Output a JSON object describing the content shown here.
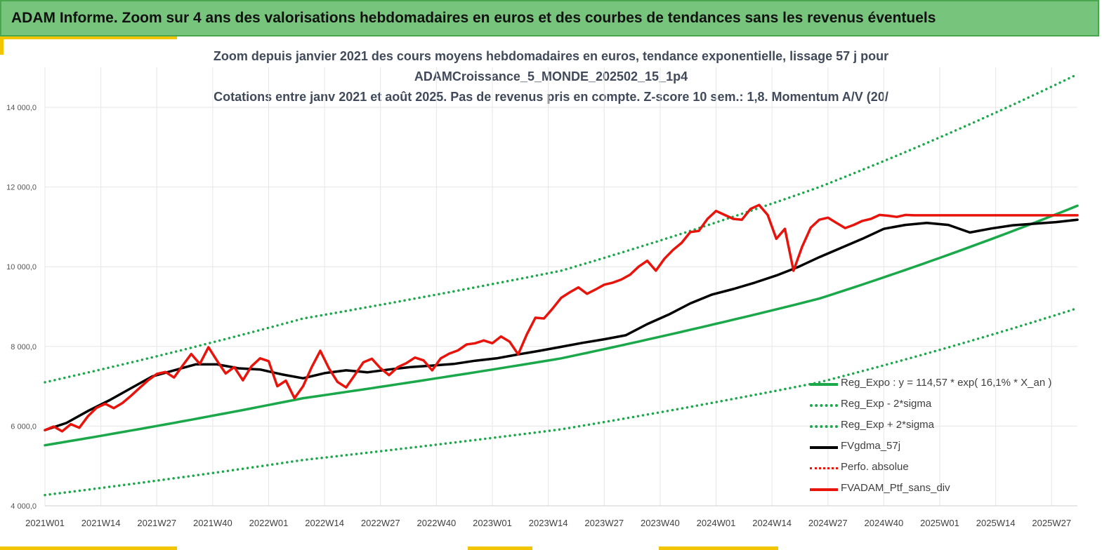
{
  "banner": {
    "title": "ADAM Informe. Zoom sur 4 ans des valorisations hebdomadaires en euros et des courbes de tendances sans les revenus éventuels"
  },
  "chart_titles": {
    "line1": "Zoom depuis janvier 2021 des cours moyens hebdomadaires  en euros, tendance exponentielle, lissage 57 j pour",
    "line2": "ADAMCroissance_5_MONDE_202502_15_1p4",
    "line3": "Cotations entre janv 2021 et août 2025. Pas de revenus pris en compte. Z-score 10 sem.: 1,8. Momentum A/V (20/"
  },
  "colors": {
    "banner_bg": "#77c47c",
    "accent": "#f2c500",
    "green": "#1aa84a",
    "black": "#000000",
    "red": "#e8140c",
    "grid": "#e6e6e6"
  },
  "chart_data": {
    "type": "line",
    "y_ticks": [
      {
        "value": 4000,
        "label": "4 000,0"
      },
      {
        "value": 6000,
        "label": "6 000,0"
      },
      {
        "value": 8000,
        "label": "8 000,0"
      },
      {
        "value": 10000,
        "label": "10 000,0"
      },
      {
        "value": 12000,
        "label": "12 000,0"
      },
      {
        "value": 14000,
        "label": "14 000,0"
      }
    ],
    "ylim": [
      4000,
      15000
    ],
    "x_tick_labels": [
      "2021W01",
      "2021W14",
      "2021W27",
      "2021W40",
      "2022W01",
      "2022W14",
      "2022W27",
      "2022W40",
      "2023W01",
      "2023W14",
      "2023W27",
      "2023W40",
      "2024W01",
      "2024W14",
      "2024W27",
      "2024W40",
      "2025W01",
      "2025W14",
      "2025W27"
    ],
    "x_tick_step_weeks": 13,
    "x_range_weeks": [
      0,
      240
    ],
    "grid": true,
    "legend_position": "bottom-right",
    "series": [
      {
        "name": "Reg_Expo : y = 114,57 * exp( 16,1% *  X_an )",
        "style": "solid",
        "color": "#1aa84a",
        "x": [
          0,
          60,
          120,
          180,
          240
        ],
        "values": [
          5520,
          6700,
          7700,
          9200,
          11530
        ]
      },
      {
        "name": "Reg_Exp - 2*sigma",
        "style": "dotted",
        "color": "#1aa84a",
        "x": [
          0,
          60,
          120,
          180,
          240
        ],
        "values": [
          4270,
          5150,
          5920,
          7100,
          8960
        ]
      },
      {
        "name": "Reg_Exp + 2*sigma",
        "style": "dotted",
        "color": "#1aa84a",
        "x": [
          0,
          60,
          120,
          180,
          240
        ],
        "values": [
          7100,
          8700,
          9900,
          12000,
          14830
        ]
      },
      {
        "name": "FVgdma_57j",
        "style": "solid",
        "color": "#000000",
        "x": [
          0,
          5,
          10,
          15,
          20,
          25,
          30,
          35,
          40,
          45,
          50,
          55,
          60,
          65,
          70,
          75,
          80,
          85,
          90,
          95,
          100,
          105,
          110,
          115,
          120,
          125,
          130,
          135,
          140,
          145,
          150,
          155,
          160,
          165,
          170,
          175,
          180,
          185,
          190,
          195,
          200,
          205,
          210,
          215,
          220,
          225,
          230,
          235,
          240
        ],
        "values": [
          5900,
          6080,
          6380,
          6650,
          6950,
          7250,
          7400,
          7550,
          7550,
          7450,
          7420,
          7300,
          7200,
          7330,
          7400,
          7350,
          7420,
          7480,
          7520,
          7560,
          7640,
          7700,
          7800,
          7890,
          7990,
          8090,
          8180,
          8280,
          8560,
          8800,
          9080,
          9300,
          9440,
          9600,
          9780,
          9990,
          10240,
          10470,
          10700,
          10950,
          11050,
          11100,
          11050,
          10860,
          10960,
          11040,
          11080,
          11120,
          11180
        ]
      },
      {
        "name": "Perfo. absolue",
        "style": "dotted",
        "color": "#e8140c",
        "x": [],
        "values": []
      },
      {
        "name": "FVADAM_Ptf_sans_div",
        "style": "solid",
        "color": "#e8140c",
        "x": [
          0,
          2,
          4,
          6,
          8,
          10,
          12,
          14,
          16,
          18,
          20,
          22,
          24,
          26,
          28,
          30,
          32,
          34,
          36,
          38,
          40,
          42,
          44,
          46,
          48,
          50,
          52,
          54,
          56,
          58,
          60,
          62,
          64,
          66,
          68,
          70,
          72,
          74,
          76,
          78,
          80,
          82,
          84,
          86,
          88,
          90,
          92,
          94,
          96,
          98,
          100,
          102,
          104,
          106,
          108,
          110,
          112,
          114,
          116,
          118,
          120,
          122,
          124,
          126,
          128,
          130,
          132,
          134,
          136,
          138,
          140,
          142,
          144,
          146,
          148,
          150,
          152,
          154,
          156,
          158,
          160,
          162,
          164,
          166,
          168,
          170,
          172,
          174,
          176,
          178,
          180,
          182,
          184,
          186,
          188,
          190,
          192,
          194,
          196,
          198,
          200,
          202,
          204,
          206,
          208,
          210,
          212,
          214,
          216,
          218,
          220,
          222,
          224,
          226,
          228,
          230,
          232,
          234,
          236,
          238,
          240
        ],
        "values": [
          5900,
          5990,
          5870,
          6050,
          5960,
          6250,
          6460,
          6560,
          6450,
          6580,
          6760,
          6960,
          7150,
          7310,
          7360,
          7220,
          7520,
          7810,
          7560,
          7980,
          7640,
          7320,
          7480,
          7150,
          7500,
          7700,
          7630,
          7000,
          7140,
          6700,
          7000,
          7480,
          7890,
          7450,
          7110,
          6970,
          7280,
          7600,
          7690,
          7450,
          7280,
          7480,
          7580,
          7720,
          7650,
          7400,
          7700,
          7820,
          7900,
          8050,
          8080,
          8150,
          8080,
          8250,
          8120,
          7800,
          8300,
          8720,
          8700,
          8950,
          9220,
          9360,
          9480,
          9320,
          9430,
          9550,
          9600,
          9680,
          9800,
          10000,
          10150,
          9900,
          10200,
          10420,
          10600,
          10870,
          10900,
          11200,
          11400,
          11300,
          11200,
          11180,
          11450,
          11550,
          11300,
          10700,
          10950,
          9900,
          10500,
          10980,
          11180,
          11230,
          11100,
          10970,
          11050,
          11150,
          11200,
          11300,
          11280,
          11250,
          11300,
          11290,
          11290,
          11290,
          11290,
          11290,
          11290,
          11290,
          11290,
          11290,
          11290,
          11290,
          11290,
          11290,
          11290,
          11290,
          11290,
          11290,
          11290,
          11290,
          11290
        ]
      }
    ]
  }
}
